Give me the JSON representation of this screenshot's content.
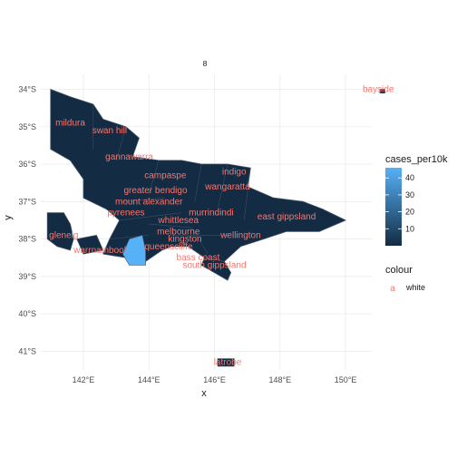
{
  "chart_data": {
    "type": "map",
    "facet_label": "8",
    "xlabel": "x",
    "ylabel": "y",
    "x_ticks": [
      "142°E",
      "144°E",
      "146°E",
      "148°E",
      "150°E"
    ],
    "x_tick_values": [
      142,
      144,
      146,
      148,
      150
    ],
    "y_ticks": [
      "34°S",
      "35°S",
      "36°S",
      "37°S",
      "38°S",
      "39°S",
      "40°S",
      "41°S"
    ],
    "y_tick_values": [
      -34,
      -35,
      -36,
      -37,
      -38,
      -39,
      -40,
      -41
    ],
    "xlim": [
      140.7,
      150.8
    ],
    "ylim": [
      -41.5,
      -33.6
    ],
    "grid": true,
    "fill_legend": {
      "title": "cases_per10k",
      "ticks": [
        10,
        20,
        30,
        40
      ],
      "range": [
        0,
        46
      ],
      "color_low": "#132b43",
      "color_high": "#56b1f7"
    },
    "colour_legend": {
      "title": "colour",
      "key_glyph": "a",
      "entries": [
        "white"
      ],
      "color": "#f8766d"
    },
    "region_labels": [
      {
        "name": "bayside",
        "lon": 151.0,
        "lat": -34.0
      },
      {
        "name": "mildura",
        "lon": 141.6,
        "lat": -34.9
      },
      {
        "name": "swan hill",
        "lon": 142.8,
        "lat": -35.1
      },
      {
        "name": "gannawarra",
        "lon": 143.4,
        "lat": -35.8
      },
      {
        "name": "indigo",
        "lon": 146.6,
        "lat": -36.2
      },
      {
        "name": "campaspe",
        "lon": 144.5,
        "lat": -36.3
      },
      {
        "name": "wangaratta",
        "lon": 146.4,
        "lat": -36.6
      },
      {
        "name": "greater bendigo",
        "lon": 144.2,
        "lat": -36.7
      },
      {
        "name": "mount alexander",
        "lon": 144.0,
        "lat": -37.0
      },
      {
        "name": "pyrenees",
        "lon": 143.3,
        "lat": -37.3
      },
      {
        "name": "murrindindi",
        "lon": 145.9,
        "lat": -37.3
      },
      {
        "name": "east gippsland",
        "lon": 148.2,
        "lat": -37.4
      },
      {
        "name": "whittlesea",
        "lon": 144.9,
        "lat": -37.5
      },
      {
        "name": "glenelg",
        "lon": 141.4,
        "lat": -37.9
      },
      {
        "name": "melbourne",
        "lon": 144.9,
        "lat": -37.8
      },
      {
        "name": "wellington",
        "lon": 146.8,
        "lat": -37.9
      },
      {
        "name": "kingston",
        "lon": 145.1,
        "lat": -38.0
      },
      {
        "name": "warrnambool",
        "lon": 142.5,
        "lat": -38.3
      },
      {
        "name": "queenscliffe",
        "lon": 144.6,
        "lat": -38.2
      },
      {
        "name": "bass coast",
        "lon": 145.5,
        "lat": -38.5
      },
      {
        "name": "south gippsland",
        "lon": 146.0,
        "lat": -38.7
      },
      {
        "name": "latrobe",
        "lon": 146.4,
        "lat": -41.3
      }
    ]
  }
}
